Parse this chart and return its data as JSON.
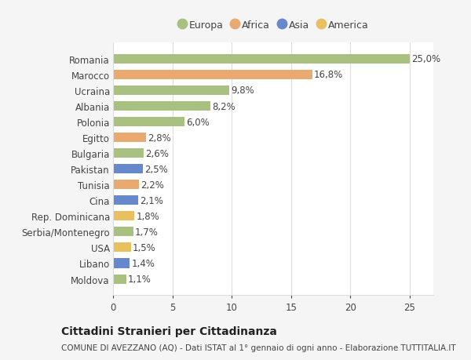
{
  "countries": [
    "Moldova",
    "Libano",
    "USA",
    "Serbia/Montenegro",
    "Rep. Dominicana",
    "Cina",
    "Tunisia",
    "Pakistan",
    "Bulgaria",
    "Egitto",
    "Polonia",
    "Albania",
    "Ucraina",
    "Marocco",
    "Romania"
  ],
  "values": [
    1.1,
    1.4,
    1.5,
    1.7,
    1.8,
    2.1,
    2.2,
    2.5,
    2.6,
    2.8,
    6.0,
    8.2,
    9.8,
    16.8,
    25.0
  ],
  "labels": [
    "1,1%",
    "1,4%",
    "1,5%",
    "1,7%",
    "1,8%",
    "2,1%",
    "2,2%",
    "2,5%",
    "2,6%",
    "2,8%",
    "6,0%",
    "8,2%",
    "9,8%",
    "16,8%",
    "25,0%"
  ],
  "colors": [
    "#a8c080",
    "#6688cc",
    "#e8c060",
    "#a8c080",
    "#e8c060",
    "#6688cc",
    "#e8aa70",
    "#6688cc",
    "#a8c080",
    "#e8aa70",
    "#a8c080",
    "#a8c080",
    "#a8c080",
    "#e8aa70",
    "#a8c080"
  ],
  "legend_labels": [
    "Europa",
    "Africa",
    "Asia",
    "America"
  ],
  "legend_colors": [
    "#a8c080",
    "#e8aa70",
    "#6688cc",
    "#e8c060"
  ],
  "title1": "Cittadini Stranieri per Cittadinanza",
  "title2": "COMUNE DI AVEZZANO (AQ) - Dati ISTAT al 1° gennaio di ogni anno - Elaborazione TUTTITALIA.IT",
  "xlim": [
    0,
    27
  ],
  "xticks": [
    0,
    5,
    10,
    15,
    20,
    25
  ],
  "background_color": "#f5f5f5",
  "bar_background": "#ffffff",
  "grid_color": "#dddddd",
  "text_color": "#444444",
  "bar_height": 0.6,
  "label_fontsize": 8.5,
  "tick_fontsize": 8.5,
  "title1_fontsize": 10,
  "title2_fontsize": 7.5
}
